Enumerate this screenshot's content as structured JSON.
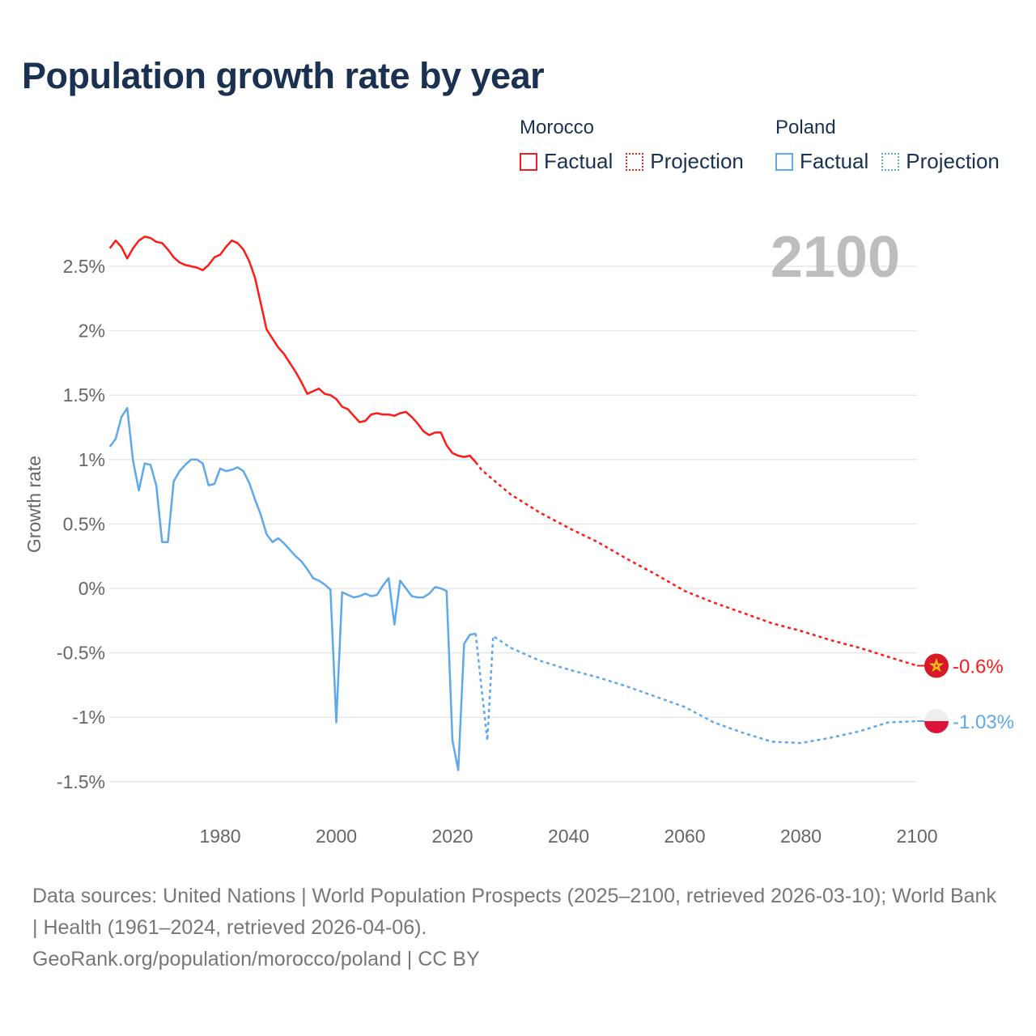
{
  "title": "Population growth rate by year",
  "legend": [
    {
      "country": "Morocco",
      "factual_label": "Factual",
      "projection_label": "Projection",
      "color": "#ff1a1a"
    },
    {
      "country": "Poland",
      "factual_label": "Factual",
      "projection_label": "Projection",
      "color": "#5ea8ec"
    }
  ],
  "current_year_label": "2100",
  "footer": {
    "sources": "Data sources: United Nations | World Population Prospects (2025–2100, retrieved 2026-03-10); World Bank | Health (1961–2024, retrieved 2026-04-06).",
    "attribution": "GeoRank.org/population/morocco/poland | CC BY"
  },
  "chart_data": {
    "type": "line",
    "title": "Population growth rate by year",
    "xlabel": "",
    "ylabel": "Growth rate",
    "xlim": [
      1961,
      2100
    ],
    "ylim": [
      -1.6,
      2.9
    ],
    "x_ticks": [
      1980,
      2000,
      2020,
      2040,
      2060,
      2080,
      2100
    ],
    "x_tick_labels": [
      "1980",
      "2000",
      "2020",
      "2040",
      "2060",
      "2080",
      "2100"
    ],
    "y_ticks": [
      2.5,
      2,
      1.5,
      1,
      0.5,
      0,
      -0.5,
      -1,
      -1.5
    ],
    "y_tick_labels": [
      "2.5%",
      "2%",
      "1.5%",
      "1%",
      "0.5%",
      "0%",
      "-0.5%",
      "-1%",
      "-1.5%"
    ],
    "grid": true,
    "legend_position": "top-right",
    "series": [
      {
        "name": "Morocco",
        "color": "#ff1a1a",
        "end_label": "-0.6%",
        "flag": "morocco-flag",
        "factual": {
          "x": [
            1961,
            1962,
            1963,
            1964,
            1965,
            1966,
            1967,
            1968,
            1969,
            1970,
            1971,
            1972,
            1973,
            1974,
            1975,
            1976,
            1977,
            1978,
            1979,
            1980,
            1981,
            1982,
            1983,
            1984,
            1985,
            1986,
            1987,
            1988,
            1989,
            1990,
            1991,
            1992,
            1993,
            1994,
            1995,
            1996,
            1997,
            1998,
            1999,
            2000,
            2001,
            2002,
            2003,
            2004,
            2005,
            2006,
            2007,
            2008,
            2009,
            2010,
            2011,
            2012,
            2013,
            2014,
            2015,
            2016,
            2017,
            2018,
            2019,
            2020,
            2021,
            2022,
            2023,
            2024
          ],
          "y": [
            2.64,
            2.7,
            2.65,
            2.56,
            2.64,
            2.7,
            2.73,
            2.72,
            2.69,
            2.68,
            2.63,
            2.57,
            2.53,
            2.51,
            2.5,
            2.49,
            2.47,
            2.51,
            2.57,
            2.59,
            2.65,
            2.7,
            2.68,
            2.63,
            2.54,
            2.41,
            2.21,
            2.01,
            1.94,
            1.87,
            1.82,
            1.75,
            1.68,
            1.6,
            1.51,
            1.53,
            1.55,
            1.51,
            1.5,
            1.47,
            1.41,
            1.39,
            1.34,
            1.29,
            1.3,
            1.35,
            1.36,
            1.35,
            1.35,
            1.34,
            1.36,
            1.37,
            1.33,
            1.28,
            1.22,
            1.19,
            1.21,
            1.21,
            1.11,
            1.05,
            1.03,
            1.02,
            1.03,
            0.98
          ]
        },
        "projection": {
          "x": [
            2024,
            2025,
            2030,
            2035,
            2040,
            2045,
            2050,
            2055,
            2060,
            2065,
            2070,
            2075,
            2080,
            2085,
            2090,
            2095,
            2100
          ],
          "y": [
            0.98,
            0.92,
            0.73,
            0.59,
            0.47,
            0.36,
            0.23,
            0.11,
            -0.02,
            -0.11,
            -0.19,
            -0.27,
            -0.33,
            -0.4,
            -0.46,
            -0.53,
            -0.6
          ]
        }
      },
      {
        "name": "Poland",
        "color": "#5ea8ec",
        "end_label": "-1.03%",
        "flag": "poland-flag",
        "factual": {
          "x": [
            1961,
            1962,
            1963,
            1964,
            1965,
            1966,
            1967,
            1968,
            1969,
            1970,
            1971,
            1972,
            1973,
            1974,
            1975,
            1976,
            1977,
            1978,
            1979,
            1980,
            1981,
            1982,
            1983,
            1984,
            1985,
            1986,
            1987,
            1988,
            1989,
            1990,
            1991,
            1992,
            1993,
            1994,
            1995,
            1996,
            1997,
            1998,
            1999,
            2000,
            2001,
            2002,
            2003,
            2004,
            2005,
            2006,
            2007,
            2008,
            2009,
            2010,
            2011,
            2012,
            2013,
            2014,
            2015,
            2016,
            2017,
            2018,
            2019,
            2020,
            2021,
            2022,
            2023,
            2024
          ],
          "y": [
            1.1,
            1.16,
            1.33,
            1.4,
            0.99,
            0.76,
            0.97,
            0.96,
            0.8,
            0.36,
            0.36,
            0.83,
            0.91,
            0.96,
            1.0,
            1.0,
            0.97,
            0.8,
            0.81,
            0.93,
            0.91,
            0.92,
            0.94,
            0.91,
            0.82,
            0.69,
            0.57,
            0.42,
            0.36,
            0.39,
            0.35,
            0.3,
            0.25,
            0.21,
            0.15,
            0.08,
            0.06,
            0.03,
            -0.01,
            -1.04,
            -0.03,
            -0.05,
            -0.07,
            -0.06,
            -0.04,
            -0.06,
            -0.05,
            0.02,
            0.08,
            -0.28,
            0.06,
            0.0,
            -0.06,
            -0.07,
            -0.07,
            -0.04,
            0.01,
            0.0,
            -0.02,
            -1.18,
            -1.41,
            -0.43,
            -0.36,
            -0.35
          ]
        },
        "projection": {
          "x": [
            2024,
            2025,
            2026,
            2027,
            2030,
            2035,
            2040,
            2045,
            2050,
            2055,
            2060,
            2065,
            2070,
            2075,
            2080,
            2085,
            2090,
            2095,
            2100
          ],
          "y": [
            -0.35,
            -0.77,
            -1.18,
            -0.37,
            -0.46,
            -0.56,
            -0.63,
            -0.69,
            -0.76,
            -0.84,
            -0.92,
            -1.04,
            -1.12,
            -1.19,
            -1.2,
            -1.16,
            -1.11,
            -1.04,
            -1.03
          ]
        }
      }
    ]
  }
}
